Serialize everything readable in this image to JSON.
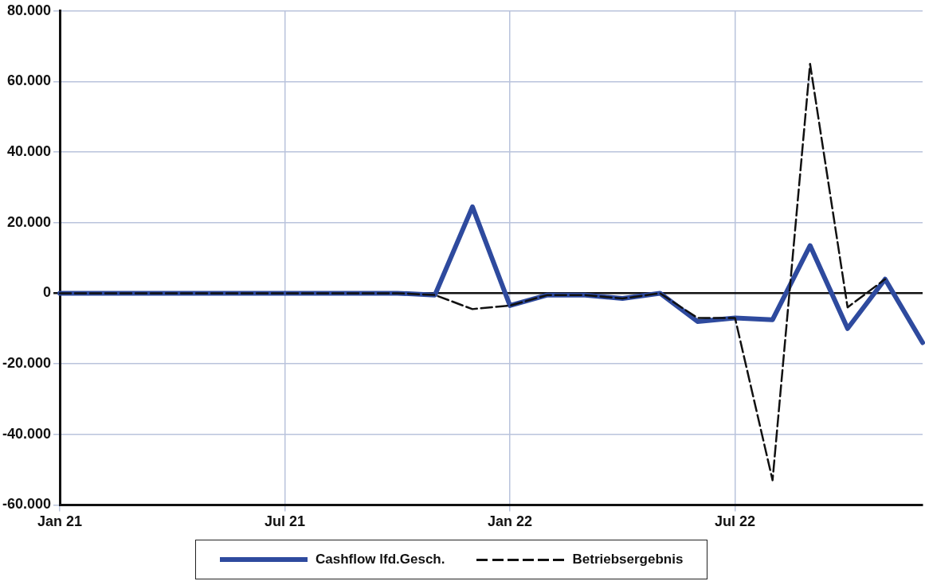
{
  "chart_data": {
    "type": "line",
    "categories": [
      "Jan 21",
      null,
      null,
      null,
      null,
      null,
      "Jul 21",
      null,
      null,
      null,
      null,
      null,
      "Jan 22",
      null,
      null,
      null,
      null,
      null,
      "Jul 22",
      null,
      null,
      null,
      null,
      null
    ],
    "series": [
      {
        "name": "Cashflow lfd.Gesch.",
        "color": "#2e4a9e",
        "line_style": "solid",
        "values": [
          0,
          0,
          0,
          0,
          0,
          0,
          0,
          0,
          0,
          0,
          -500,
          24500,
          -3500,
          -500,
          -500,
          -1500,
          0,
          -8000,
          -7000,
          -7500,
          13500,
          -10000,
          4000,
          -14000
        ]
      },
      {
        "name": "Betriebsergebnis",
        "color": "#111111",
        "line_style": "dashed",
        "values": [
          0,
          0,
          0,
          0,
          0,
          0,
          0,
          0,
          0,
          0,
          -500,
          -4500,
          -3500,
          -500,
          -500,
          -1500,
          0,
          -7000,
          -7000,
          -53000,
          65000,
          -4000,
          4000,
          null
        ]
      }
    ],
    "ylim": [
      -60000,
      80000
    ],
    "yticks": [
      {
        "value": -60000,
        "label": "-60.000"
      },
      {
        "value": -40000,
        "label": "-40.000"
      },
      {
        "value": -20000,
        "label": "-20.000"
      },
      {
        "value": 0,
        "label": "0"
      },
      {
        "value": 20000,
        "label": "20.000"
      },
      {
        "value": 40000,
        "label": "40.000"
      },
      {
        "value": 60000,
        "label": "60.000"
      },
      {
        "value": 80000,
        "label": "80.000"
      }
    ],
    "grid": true,
    "legend": "bottom",
    "marker": "none"
  }
}
